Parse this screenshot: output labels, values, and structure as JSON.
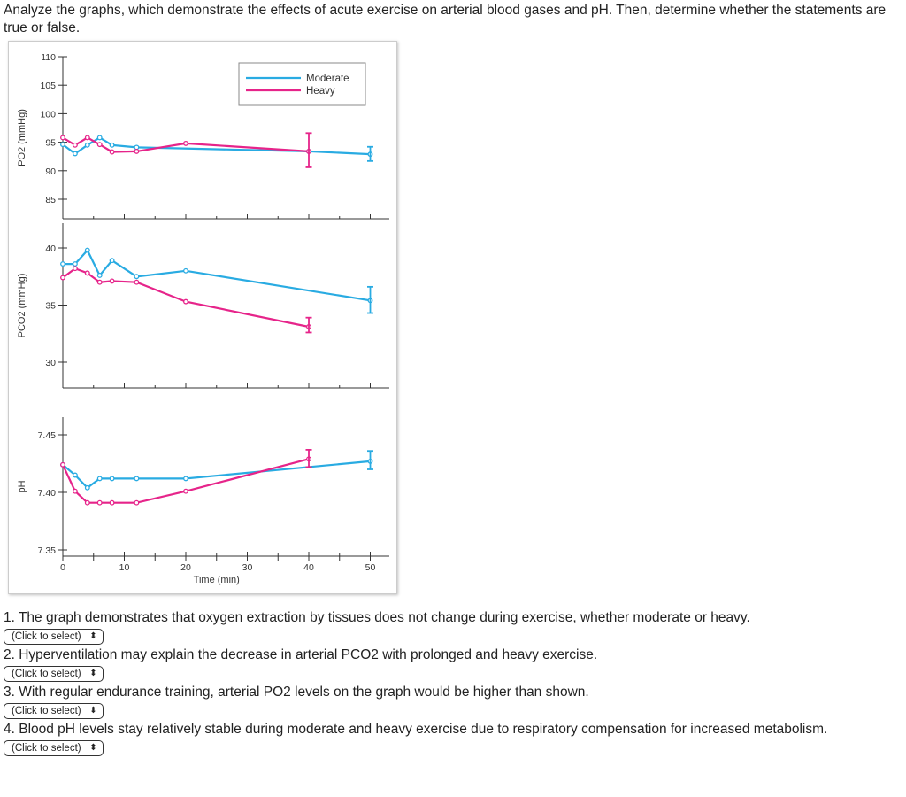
{
  "intro": "Analyze the graphs, which demonstrate the effects of acute exercise on arterial blood gases and pH. Then, determine whether the statements are true or false.",
  "colors": {
    "moderate": "#29abe2",
    "heavy": "#e6248a",
    "axis": "#333333"
  },
  "chart_data": [
    {
      "type": "line",
      "ylabel": "PO2 (mmHg)",
      "ylim": [
        85,
        110
      ],
      "yticks": [
        "110",
        "105",
        "100",
        "95",
        "90",
        "85"
      ],
      "xlim": [
        0,
        50
      ],
      "legend": {
        "placement": "top-right",
        "entries": [
          "Moderate",
          "Heavy"
        ]
      },
      "series": [
        {
          "name": "Moderate",
          "x": [
            0,
            2,
            4,
            6,
            8,
            12,
            40,
            50
          ],
          "y": [
            94.6,
            93.0,
            94.5,
            95.8,
            94.5,
            94.1,
            93.4,
            92.9
          ],
          "error_bar": {
            "x": 50,
            "low": 91.7,
            "high": 94.2
          }
        },
        {
          "name": "Heavy",
          "x": [
            0,
            2,
            4,
            6,
            8,
            12,
            20,
            40
          ],
          "y": [
            95.8,
            94.5,
            95.8,
            94.6,
            93.3,
            93.4,
            94.8,
            93.4
          ],
          "error_bar": {
            "x": 40,
            "low": 90.6,
            "high": 96.6
          }
        }
      ]
    },
    {
      "type": "line",
      "ylabel": "PCO2 (mmHg)",
      "ylim": [
        28,
        42
      ],
      "yticks": [
        "40",
        "35",
        "30"
      ],
      "xlim": [
        0,
        50
      ],
      "series": [
        {
          "name": "Moderate",
          "x": [
            0,
            2,
            4,
            6,
            8,
            12,
            20,
            50
          ],
          "y": [
            38.6,
            38.6,
            39.8,
            37.6,
            38.9,
            37.5,
            38.0,
            35.4
          ],
          "error_bar": {
            "x": 50,
            "low": 34.3,
            "high": 36.6
          }
        },
        {
          "name": "Heavy",
          "x": [
            0,
            2,
            4,
            6,
            8,
            12,
            20,
            40
          ],
          "y": [
            37.4,
            38.2,
            37.8,
            37.0,
            37.1,
            37.0,
            35.3,
            33.1
          ],
          "error_bar": {
            "x": 40,
            "low": 32.6,
            "high": 33.9
          }
        }
      ]
    },
    {
      "type": "line",
      "ylabel": "pH",
      "ylim": [
        7.35,
        7.46
      ],
      "yticks": [
        "7.45",
        "7.40",
        "7.35"
      ],
      "xlim": [
        0,
        50
      ],
      "xticks": [
        "0",
        "10",
        "20",
        "30",
        "40",
        "50"
      ],
      "xlabel": "Time (min)",
      "series": [
        {
          "name": "Moderate",
          "x": [
            0,
            2,
            4,
            6,
            8,
            12,
            20,
            50
          ],
          "y": [
            7.424,
            7.415,
            7.404,
            7.412,
            7.412,
            7.412,
            7.412,
            7.427
          ],
          "error_bar": {
            "x": 50,
            "low": 7.42,
            "high": 7.436
          }
        },
        {
          "name": "Heavy",
          "x": [
            0,
            2,
            4,
            6,
            8,
            12,
            20,
            40
          ],
          "y": [
            7.424,
            7.401,
            7.391,
            7.391,
            7.391,
            7.391,
            7.401,
            7.429
          ],
          "error_bar": {
            "x": 40,
            "low": 7.422,
            "high": 7.437
          }
        }
      ]
    }
  ],
  "questions": [
    {
      "text": "1. The graph demonstrates that oxygen extraction by tissues does not change during exercise, whether moderate or heavy.",
      "select": "(Click to select)"
    },
    {
      "text": "2. Hyperventilation may explain the decrease in arterial PCO2 with prolonged and heavy exercise.",
      "select": "(Click to select)"
    },
    {
      "text": "3. With regular endurance training, arterial PO2 levels on the graph would be higher than shown.",
      "select": "(Click to select)"
    },
    {
      "text": "4. Blood pH levels stay relatively stable during moderate and heavy exercise due to respiratory compensation for increased metabolism.",
      "select": "(Click to select)"
    }
  ],
  "select_arrow": "⬍"
}
